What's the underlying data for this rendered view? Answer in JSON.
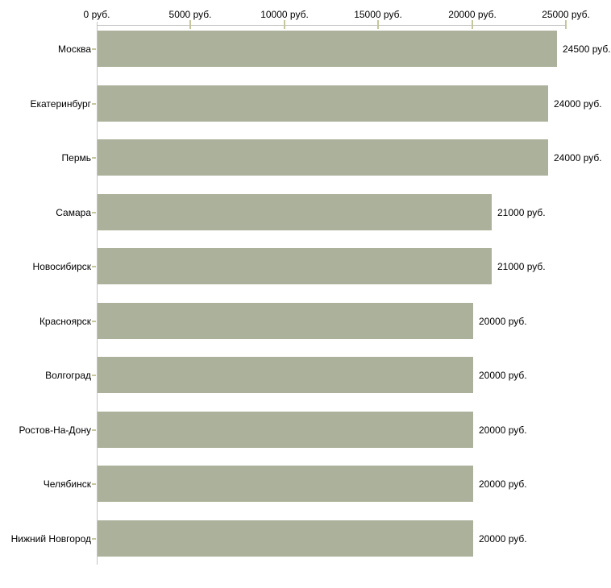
{
  "chart_data": {
    "type": "bar",
    "orientation": "horizontal",
    "title": "",
    "xlabel": "",
    "ylabel": "",
    "categories": [
      "Москва",
      "Екатеринбург",
      "Пермь",
      "Самара",
      "Новосибирск",
      "Красноярск",
      "Волгоград",
      "Ростов-На-Дону",
      "Челябинск",
      "Нижний Новгород"
    ],
    "values": [
      24500,
      24000,
      24000,
      21000,
      21000,
      20000,
      20000,
      20000,
      20000,
      20000
    ],
    "value_labels": [
      "24500 руб.",
      "24000 руб.",
      "24000 руб.",
      "21000 руб.",
      "21000 руб.",
      "20000 руб.",
      "20000 руб.",
      "20000 руб.",
      "20000 руб.",
      "20000 руб."
    ],
    "x_axis": {
      "position": "top",
      "min": 0,
      "max": 25000,
      "tick_values": [
        0,
        5000,
        10000,
        15000,
        20000,
        25000
      ],
      "tick_labels": [
        "0 руб.",
        "5000 руб.",
        "10000 руб.",
        "15000 руб.",
        "20000 руб.",
        "25000 руб."
      ]
    },
    "legend": null,
    "grid": false,
    "colors": {
      "bar": "#abb19a",
      "axis_line": "#c4c4c4",
      "tick_mark": "#c6c69c",
      "text": "#000000",
      "background": "#ffffff"
    }
  }
}
